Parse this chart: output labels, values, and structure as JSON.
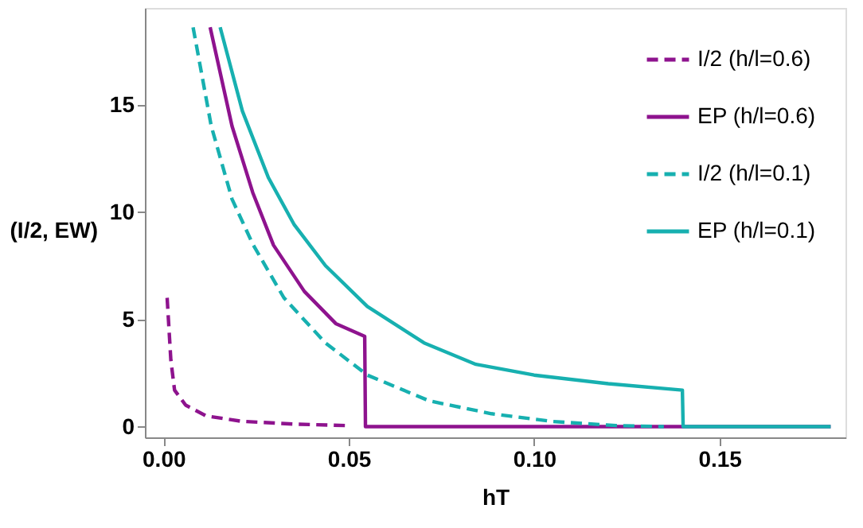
{
  "chart_data": {
    "type": "line",
    "xlabel": "hT",
    "ylabel": "(I/2, EW)",
    "xlim": [
      -0.005,
      0.184
    ],
    "ylim": [
      -0.5,
      19.5
    ],
    "xticks": [
      {
        "value": 0,
        "label": "0.00"
      },
      0.05,
      {
        "value": 0.1,
        "label": "0.10"
      },
      0.15
    ],
    "yticks": [
      0,
      5,
      10,
      15
    ],
    "grid": false,
    "legend": "top right",
    "marker": "none",
    "series": [
      {
        "name": "I/2 (h/l=0.6)",
        "color": "#8e138e",
        "line_style": "dashed",
        "x": [
          0.001,
          0.002,
          0.003,
          0.006,
          0.0115,
          0.021,
          0.035,
          0.049
        ],
        "values": [
          6.0,
          3.1,
          1.7,
          1.0,
          0.5,
          0.25,
          0.12,
          0.05
        ]
      },
      {
        "name": "EP (h/l=0.6)",
        "color": "#8e138e",
        "line_style": "solid",
        "x": [
          0.0126,
          0.0185,
          0.0241,
          0.0297,
          0.038,
          0.0465,
          0.0543,
          0.0545,
          0.18
        ],
        "values": [
          18.6,
          14.0,
          10.9,
          8.45,
          6.3,
          4.8,
          4.2,
          0,
          0
        ]
      },
      {
        "name": "I/2 (h/l=0.1)",
        "color": "#17b0b0",
        "line_style": "dashed",
        "x": [
          0.008,
          0.0129,
          0.0185,
          0.0241,
          0.0325,
          0.0437,
          0.055,
          0.0717,
          0.0885,
          0.105,
          0.122,
          0.135
        ],
        "values": [
          18.6,
          14.0,
          10.6,
          8.5,
          6.0,
          3.9,
          2.4,
          1.2,
          0.6,
          0.24,
          0.05,
          0
        ]
      },
      {
        "name": "EP (h/l=0.1)",
        "color": "#17b0b0",
        "line_style": "solid",
        "x": [
          0.0153,
          0.0213,
          0.0283,
          0.0353,
          0.0437,
          0.055,
          0.0703,
          0.0843,
          0.1,
          0.12,
          0.14,
          0.1402,
          0.18
        ],
        "values": [
          18.6,
          14.7,
          11.6,
          9.4,
          7.5,
          5.6,
          3.9,
          2.9,
          2.4,
          2.0,
          1.7,
          0,
          0
        ]
      }
    ]
  }
}
